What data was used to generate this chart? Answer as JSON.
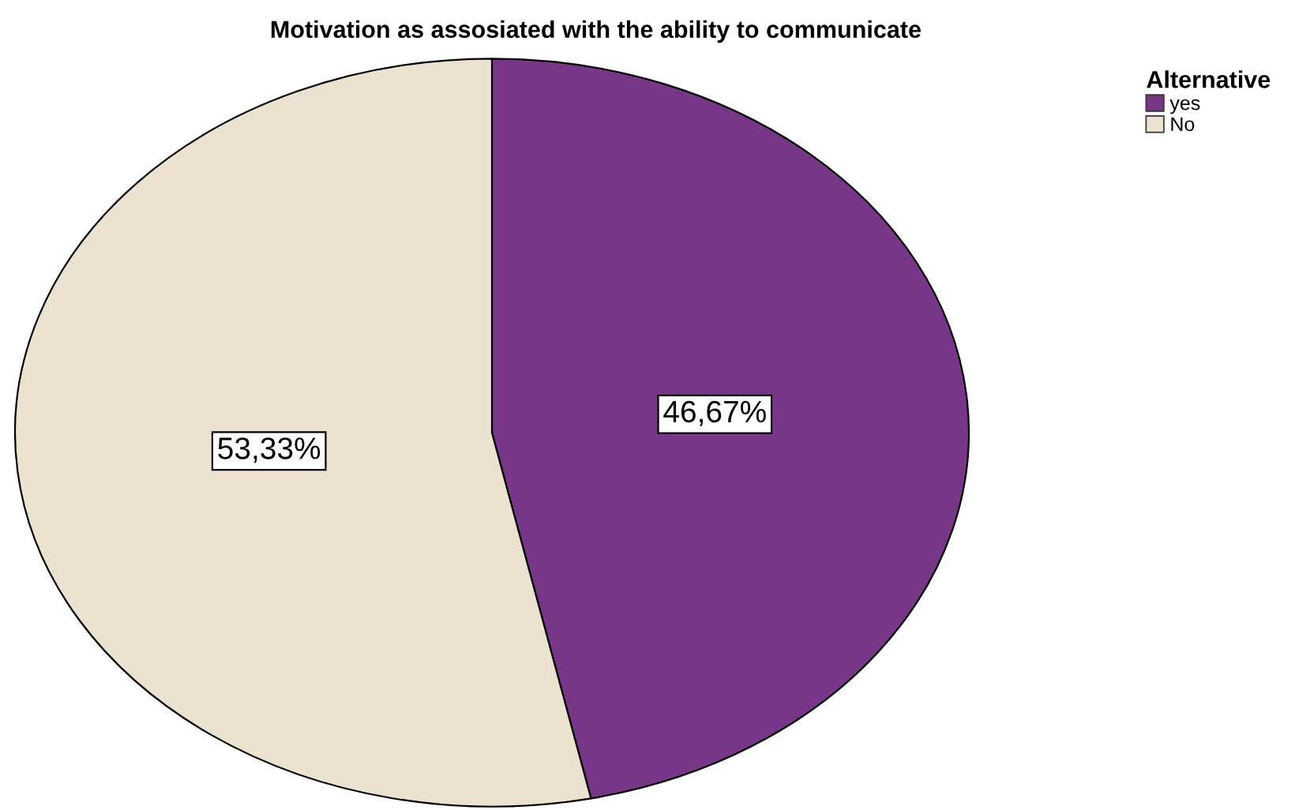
{
  "chart_data": {
    "type": "pie",
    "title": "Motivation as assosiated with the ability to communicate",
    "legend_title": "Alternative",
    "categories": [
      "yes",
      "No"
    ],
    "values": [
      46.67,
      53.33
    ],
    "value_labels": [
      "46,67%",
      "53,33%"
    ],
    "colors": [
      "#783688",
      "#ebe3d0"
    ],
    "legend": "top right"
  }
}
